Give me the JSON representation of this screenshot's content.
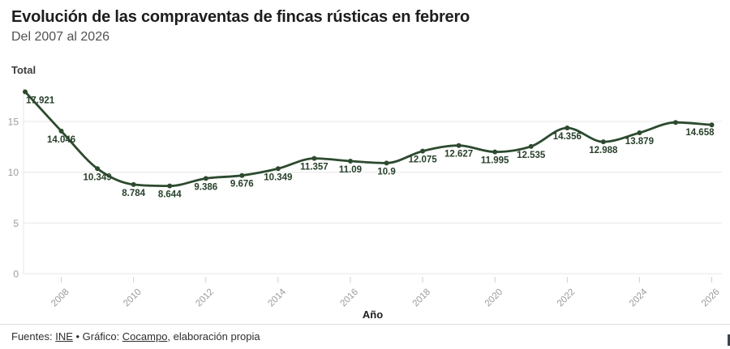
{
  "header": {
    "title": "Evolución de las compraventas de fincas rústicas en febrero",
    "subtitle": "Del 2007 al 2026"
  },
  "chart_data": {
    "type": "line",
    "title": "Evolución de las compraventas de fincas rústicas en febrero",
    "subtitle": "Del 2007 al 2026",
    "ylabel": "Total",
    "xlabel": "Año",
    "series_name": "Total",
    "x": [
      2007,
      2008,
      2009,
      2010,
      2011,
      2012,
      2013,
      2014,
      2015,
      2016,
      2017,
      2018,
      2019,
      2020,
      2021,
      2022,
      2023,
      2024,
      2025,
      2026
    ],
    "values": [
      17.921,
      14.046,
      10.349,
      8.784,
      8.644,
      9.386,
      9.676,
      10.349,
      11.357,
      11.09,
      10.9,
      12.075,
      12.627,
      11.995,
      12.535,
      14.356,
      12.988,
      13.879,
      14.9,
      14.658
    ],
    "point_labels": [
      "17.921",
      "14.046",
      "10.349",
      "8.784",
      "8.644",
      "9.386",
      "9.676",
      "10.349",
      "11.357",
      "11.09",
      "10.9",
      "12.075",
      "12.627",
      "11.995",
      "12.535",
      "14.356",
      "12.988",
      "13.879",
      "",
      "14.658"
    ],
    "x_ticks": [
      "2008",
      "2010",
      "2012",
      "2014",
      "2016",
      "2018",
      "2020",
      "2022",
      "2024",
      "2026"
    ],
    "x_tick_years": [
      2008,
      2010,
      2012,
      2014,
      2016,
      2018,
      2020,
      2022,
      2024,
      2026
    ],
    "y_ticks": [
      "0",
      "5",
      "10",
      "15"
    ],
    "y_tick_values": [
      0,
      5,
      10,
      15
    ],
    "ylim": [
      0,
      18.6
    ],
    "xlim": [
      2007,
      2026
    ],
    "grid": "horizontal",
    "legend": "none",
    "colors": {
      "line": "#2d4a2f",
      "marker": "#2d4a2f",
      "value_label": "#27402a",
      "axis_text": "#9b9b9b",
      "gridline": "#e7e7e7",
      "tick": "#cfcfcf",
      "xlabel_text": "#1d1d1d"
    }
  },
  "footer": {
    "sources_prefix": "Fuentes: ",
    "source_link": "INE",
    "separator": " • Gráfico: ",
    "credit_link": "Cocampo",
    "suffix": ", elaboración propia"
  }
}
